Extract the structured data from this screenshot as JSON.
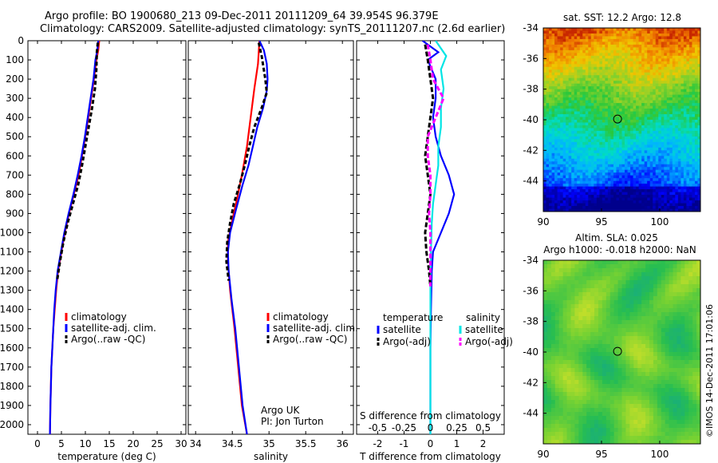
{
  "header": {
    "line1": "Argo profile: BO 1900680_213 09-Dec-2011 20111209_64 39.954S 96.379E",
    "line2": "Climatology: CARS2009. Satellite-adjusted climatology: synTS_20111207.nc (2.6d earlier)"
  },
  "colors": {
    "climatology": "#ff0000",
    "satellite": "#0000ff",
    "argo": "#000000",
    "sat_salinity": "#00e5e5",
    "argo_salinity": "#ff00ff"
  },
  "chart_data": [
    {
      "type": "line",
      "id": "temperature",
      "xlabel": "temperature (deg C)",
      "xticks": [
        0,
        5,
        10,
        15,
        20,
        25,
        30
      ],
      "xlim": [
        -2,
        31
      ],
      "ylim": [
        2050,
        0
      ],
      "yticks": [
        0,
        100,
        200,
        300,
        400,
        500,
        600,
        700,
        800,
        900,
        1000,
        1100,
        1200,
        1300,
        1400,
        1500,
        1600,
        1700,
        1800,
        1900,
        2000
      ],
      "legend": [
        "climatology",
        "satellite-adj. clim.",
        "Argo(..raw -QC)"
      ],
      "series": [
        {
          "name": "climatology",
          "color": "#ff0000",
          "dash": "",
          "pts": [
            [
              12.9,
              0
            ],
            [
              12.7,
              50
            ],
            [
              12.3,
              100
            ],
            [
              11.8,
              200
            ],
            [
              11.2,
              300
            ],
            [
              10.6,
              400
            ],
            [
              10.0,
              500
            ],
            [
              9.3,
              600
            ],
            [
              8.6,
              700
            ],
            [
              7.6,
              800
            ],
            [
              6.6,
              900
            ],
            [
              5.7,
              1000
            ],
            [
              5.0,
              1100
            ],
            [
              4.3,
              1200
            ],
            [
              3.9,
              1300
            ],
            [
              3.6,
              1400
            ],
            [
              3.3,
              1500
            ],
            [
              3.1,
              1600
            ],
            [
              2.9,
              1700
            ],
            [
              2.8,
              1800
            ],
            [
              2.7,
              1900
            ],
            [
              2.6,
              2050
            ]
          ]
        },
        {
          "name": "satellite-adj. clim.",
          "color": "#0000ff",
          "dash": "",
          "pts": [
            [
              12.7,
              0
            ],
            [
              12.5,
              50
            ],
            [
              12.1,
              100
            ],
            [
              11.7,
              200
            ],
            [
              11.1,
              300
            ],
            [
              10.5,
              400
            ],
            [
              9.9,
              500
            ],
            [
              9.2,
              600
            ],
            [
              8.4,
              700
            ],
            [
              7.5,
              800
            ],
            [
              6.5,
              900
            ],
            [
              5.6,
              1000
            ],
            [
              4.9,
              1100
            ],
            [
              4.2,
              1200
            ],
            [
              3.8,
              1300
            ],
            [
              3.5,
              1400
            ],
            [
              3.3,
              1500
            ],
            [
              3.1,
              1600
            ],
            [
              2.9,
              1700
            ],
            [
              2.8,
              1800
            ],
            [
              2.7,
              1900
            ],
            [
              2.6,
              2050
            ]
          ]
        },
        {
          "name": "Argo(..raw -QC)",
          "color": "#000000",
          "dash": "5,3",
          "pts": [
            [
              12.6,
              10
            ],
            [
              12.4,
              60
            ],
            [
              12.3,
              150
            ],
            [
              12.0,
              250
            ],
            [
              11.4,
              350
            ],
            [
              10.7,
              450
            ],
            [
              10.0,
              550
            ],
            [
              9.3,
              650
            ],
            [
              8.5,
              750
            ],
            [
              7.4,
              850
            ],
            [
              6.3,
              950
            ],
            [
              5.4,
              1050
            ],
            [
              4.7,
              1150
            ],
            [
              4.1,
              1250
            ]
          ]
        }
      ]
    },
    {
      "type": "line",
      "id": "salinity",
      "xlabel": "salinity",
      "xticks": [
        34,
        34.5,
        35,
        35.5,
        36
      ],
      "xlim": [
        33.9,
        36.15
      ],
      "ylim": [
        2050,
        0
      ],
      "legend": [
        "climatology",
        "satellite-adj. clim.",
        "Argo(..raw -QC)"
      ],
      "annotation": [
        "Argo UK",
        "PI: Jon Turton"
      ],
      "series": [
        {
          "name": "climatology",
          "color": "#ff0000",
          "dash": "",
          "pts": [
            [
              34.87,
              0
            ],
            [
              34.86,
              60
            ],
            [
              34.85,
              120
            ],
            [
              34.8,
              250
            ],
            [
              34.75,
              400
            ],
            [
              34.7,
              550
            ],
            [
              34.63,
              700
            ],
            [
              34.55,
              850
            ],
            [
              34.49,
              950
            ],
            [
              34.44,
              1050
            ],
            [
              34.44,
              1150
            ],
            [
              34.47,
              1300
            ],
            [
              34.53,
              1500
            ],
            [
              34.58,
              1700
            ],
            [
              34.63,
              1900
            ],
            [
              34.7,
              2050
            ]
          ]
        },
        {
          "name": "satellite-adj. clim.",
          "color": "#0000ff",
          "dash": "",
          "pts": [
            [
              34.87,
              0
            ],
            [
              34.93,
              50
            ],
            [
              34.97,
              120
            ],
            [
              34.98,
              200
            ],
            [
              34.97,
              260
            ],
            [
              34.92,
              350
            ],
            [
              34.84,
              450
            ],
            [
              34.78,
              550
            ],
            [
              34.72,
              650
            ],
            [
              34.64,
              750
            ],
            [
              34.55,
              880
            ],
            [
              34.47,
              1000
            ],
            [
              34.44,
              1100
            ],
            [
              34.45,
              1200
            ],
            [
              34.49,
              1350
            ],
            [
              34.54,
              1500
            ],
            [
              34.59,
              1700
            ],
            [
              34.64,
              1900
            ],
            [
              34.7,
              2050
            ]
          ]
        },
        {
          "name": "Argo(..raw -QC)",
          "color": "#000000",
          "dash": "5,3",
          "pts": [
            [
              34.86,
              10
            ],
            [
              34.9,
              80
            ],
            [
              34.95,
              200
            ],
            [
              34.97,
              270
            ],
            [
              34.9,
              350
            ],
            [
              34.8,
              450
            ],
            [
              34.73,
              550
            ],
            [
              34.67,
              650
            ],
            [
              34.6,
              750
            ],
            [
              34.52,
              850
            ],
            [
              34.47,
              950
            ],
            [
              34.43,
              1050
            ],
            [
              34.42,
              1150
            ],
            [
              34.45,
              1250
            ]
          ]
        }
      ]
    },
    {
      "type": "line",
      "id": "difference",
      "xlabel": "T difference from climatology",
      "xticks": [
        -2,
        -1,
        0,
        1,
        2
      ],
      "xlim": [
        -2.8,
        2.8
      ],
      "top_axis_label": "S difference from climatology",
      "top_ticks": [
        "-0.5",
        "-0.25",
        "0",
        "0.25",
        "0.5"
      ],
      "ylim": [
        2050,
        0
      ],
      "legend_left_title": "temperature",
      "legend_right_title": "salinity",
      "legend_left": [
        "satellite",
        "Argo(-adj)"
      ],
      "legend_right": [
        "satellite",
        "Argo(-adj)"
      ],
      "series": [
        {
          "name": "satellite",
          "color": "#0000ff",
          "dash": "",
          "pts": [
            [
              -0.3,
              0
            ],
            [
              0.3,
              60
            ],
            [
              -0.1,
              100
            ],
            [
              0.2,
              200
            ],
            [
              0.2,
              300
            ],
            [
              0.1,
              400
            ],
            [
              0.2,
              500
            ],
            [
              0.4,
              600
            ],
            [
              0.7,
              700
            ],
            [
              0.9,
              800
            ],
            [
              0.7,
              900
            ],
            [
              0.4,
              1000
            ],
            [
              0.1,
              1100
            ],
            [
              0.05,
              1200
            ],
            [
              0.02,
              1400
            ],
            [
              0,
              1600
            ],
            [
              0,
              1800
            ],
            [
              0,
              2050
            ]
          ]
        },
        {
          "name": "satellite",
          "color": "#00e5e5",
          "dash": "",
          "pts": [
            [
              0.2,
              0
            ],
            [
              0.6,
              80
            ],
            [
              0.4,
              150
            ],
            [
              0.5,
              250
            ],
            [
              0.4,
              350
            ],
            [
              0.4,
              450
            ],
            [
              0.3,
              550
            ],
            [
              0.3,
              650
            ],
            [
              0.2,
              750
            ],
            [
              0.1,
              850
            ],
            [
              0.05,
              950
            ],
            [
              0.02,
              1100
            ],
            [
              0,
              1300
            ],
            [
              0,
              1500
            ],
            [
              0,
              1700
            ],
            [
              0,
              1900
            ],
            [
              0,
              2050
            ]
          ]
        },
        {
          "name": "Argo(-adj)",
          "color": "#000000",
          "dash": "6,3",
          "pts": [
            [
              -0.2,
              20
            ],
            [
              -0.1,
              100
            ],
            [
              0.0,
              200
            ],
            [
              0.1,
              300
            ],
            [
              0.0,
              400
            ],
            [
              -0.1,
              500
            ],
            [
              -0.2,
              600
            ],
            [
              -0.1,
              700
            ],
            [
              0.0,
              800
            ],
            [
              -0.1,
              900
            ],
            [
              -0.2,
              1000
            ],
            [
              -0.15,
              1100
            ],
            [
              -0.05,
              1200
            ],
            [
              0,
              1280
            ]
          ]
        },
        {
          "name": "Argo(-adj)",
          "color": "#ff00ff",
          "dash": "6,3",
          "pts": [
            [
              -0.1,
              20
            ],
            [
              0.0,
              100
            ],
            [
              0.1,
              200
            ],
            [
              0.5,
              300
            ],
            [
              0.2,
              400
            ],
            [
              -0.1,
              500
            ],
            [
              -0.1,
              600
            ],
            [
              0.0,
              700
            ],
            [
              0.0,
              800
            ],
            [
              -0.05,
              900
            ],
            [
              0.0,
              1000
            ],
            [
              0.0,
              1100
            ],
            [
              0.0,
              1280
            ]
          ]
        }
      ]
    },
    {
      "type": "heatmap",
      "id": "sst_map",
      "title": "sat. SST: 12.2  Argo: 12.8",
      "xticks": [
        90,
        95,
        100
      ],
      "yticks": [
        -34,
        -36,
        -38,
        -40,
        -42,
        -44
      ],
      "xlim": [
        90,
        103.5
      ],
      "ylim": [
        -46,
        -34
      ],
      "marker": [
        96.379,
        -39.954
      ]
    },
    {
      "type": "heatmap",
      "id": "sla_map",
      "title1": "Altim. SLA: 0.025",
      "title2": "Argo h1000: -0.018  h2000: NaN",
      "xticks": [
        90,
        95,
        100
      ],
      "yticks": [
        -34,
        -36,
        -38,
        -40,
        -42,
        -44
      ],
      "xlim": [
        90,
        103.5
      ],
      "ylim": [
        -46,
        -34
      ],
      "marker": [
        96.379,
        -39.954
      ]
    }
  ],
  "credit": "©IMOS 14-Dec-2011 17:01:06"
}
